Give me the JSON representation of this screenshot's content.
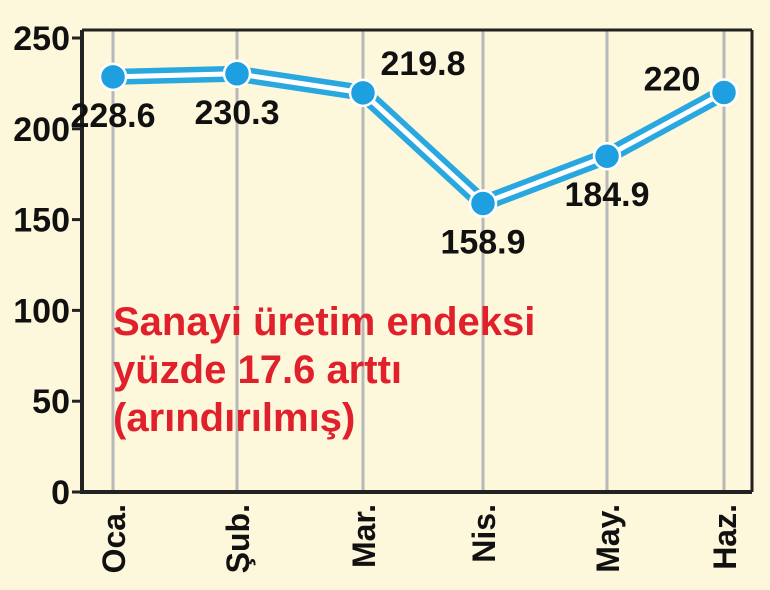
{
  "chart_data": {
    "type": "line",
    "categories": [
      "Oca.",
      "Şub.",
      "Mar.",
      "Nis.",
      "May.",
      "Haz."
    ],
    "series": [
      {
        "values": [
          228.6,
          230.3,
          219.8,
          158.9,
          184.9,
          220
        ]
      }
    ],
    "data_labels": [
      "228.6",
      "230.3",
      "219.8",
      "158.9",
      "184.9",
      "220"
    ],
    "ylim": [
      0,
      250
    ],
    "yticks": [
      0,
      50,
      100,
      150,
      200,
      250
    ],
    "grid": "vertical",
    "annotation": {
      "lines": [
        "Sanayi üretim endeksi",
        "yüzde 17.6 arttı",
        "(arındırılmış)"
      ],
      "color": "#e0202a"
    },
    "colors": {
      "line": "#29a8e0",
      "marker": "#1ea0e0",
      "background": "#fdf8dc",
      "grid": "#b8b8b8",
      "axis": "#222222"
    }
  }
}
